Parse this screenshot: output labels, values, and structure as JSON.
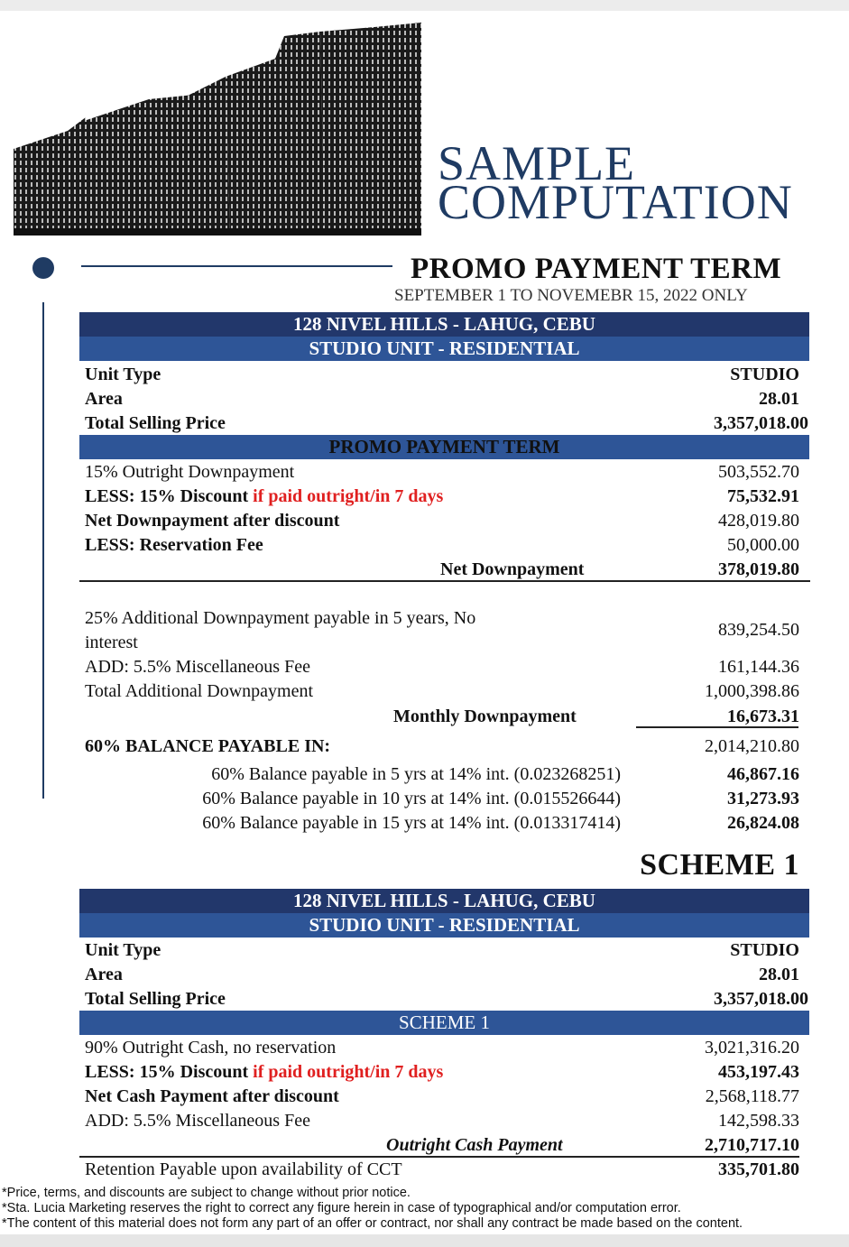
{
  "header": {
    "title_line1": "SAMPLE",
    "title_line2": "COMPUTATION",
    "subtitle": "PROMO PAYMENT TERM",
    "dates": "SEPTEMBER 1 TO NOVEMEBR 15, 2022 ONLY"
  },
  "colors": {
    "navy": "#1f3b63",
    "dark_bar": "#22376b",
    "mid_bar": "#2e5597",
    "red": "#e02020"
  },
  "table1": {
    "project": "128 NIVEL HILLS - LAHUG, CEBU",
    "unit": "STUDIO UNIT - RESIDENTIAL",
    "unit_type_label": "Unit Type",
    "unit_type": "STUDIO",
    "area_label": "Area",
    "area": "28.01",
    "tsp_label": "Total Selling Price",
    "tsp": "3,357,018.00",
    "section": "PROMO PAYMENT TERM",
    "dp_label": "15% Outright Downpayment",
    "dp": "503,552.70",
    "less_label": "LESS: 15% Discount ",
    "less_red": "if paid outright/in 7 days",
    "less": "75,532.91",
    "net_label": "Net Downpayment after discount",
    "net": "428,019.80",
    "res_label": "LESS: Reservation Fee",
    "res": "50,000.00",
    "netdp_label": "Net Downpayment",
    "netdp": "378,019.80",
    "add_dp_label1": "25% Additional Downpayment payable in 5 years, No",
    "add_dp_label2": "interest",
    "add_dp": "839,254.50",
    "misc_label": "ADD: 5.5% Miscellaneous Fee",
    "misc": "161,144.36",
    "total_add_label": "Total Additional Downpayment",
    "total_add": "1,000,398.86",
    "monthly_label": "Monthly Downpayment",
    "monthly": "16,673.31",
    "balance_label": "60% BALANCE PAYABLE IN:",
    "balance": "2,014,210.80",
    "terms": [
      {
        "label": "60% Balance payable in 5 yrs at 14% int. (0.023268251)",
        "value": "46,867.16"
      },
      {
        "label": "60% Balance payable in 10 yrs at 14% int. (0.015526644)",
        "value": "31,273.93"
      },
      {
        "label": "60% Balance payable in 15 yrs at 14% int. (0.013317414)",
        "value": "26,824.08"
      }
    ]
  },
  "scheme_heading": "SCHEME 1",
  "table2": {
    "project": "128 NIVEL HILLS - LAHUG, CEBU",
    "unit": "STUDIO UNIT - RESIDENTIAL",
    "unit_type_label": "Unit Type",
    "unit_type": "STUDIO",
    "area_label": "Area",
    "area": "28.01",
    "tsp_label": "Total Selling Price",
    "tsp": "3,357,018.00",
    "section": "SCHEME 1",
    "cash_label": "90% Outright Cash, no reservation",
    "cash": "3,021,316.20",
    "less_label": "LESS: 15% Discount ",
    "less_red": "if paid outright/in 7 days",
    "less": "453,197.43",
    "net_label": "Net Cash Payment after discount",
    "net": "2,568,118.77",
    "misc_label": "ADD: 5.5% Miscellaneous Fee",
    "misc": "142,598.33",
    "outright_label": "Outright Cash Payment",
    "outright": "2,710,717.10",
    "retention_label": "Retention Payable upon availability of CCT",
    "retention": "335,701.80"
  },
  "footnotes": [
    "*Price, terms, and discounts are subject to change without prior notice.",
    "*Sta. Lucia Marketing reserves the right to correct any figure herein in case of typographical and/or computation error.",
    "*The content of this material does not form any part of an offer or contract, nor shall any contract be made based on the content."
  ]
}
